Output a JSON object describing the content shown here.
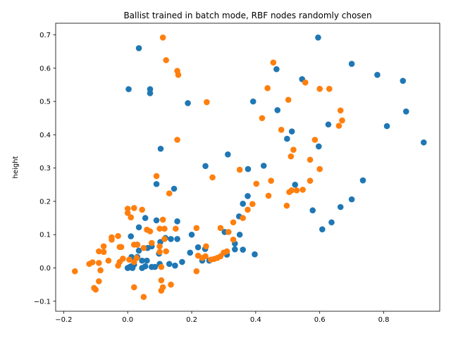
{
  "chart_data": {
    "type": "scatter",
    "title": "Ballist trained in batch mode, RBF nodes randomly chosen",
    "xlabel": "",
    "ylabel": "height",
    "xlim": [
      -0.225,
      0.975
    ],
    "ylim": [
      -0.13,
      0.735
    ],
    "xticks": [
      -0.2,
      0.0,
      0.2,
      0.4,
      0.6,
      0.8
    ],
    "xtick_labels": [
      "−0.2",
      "0.0",
      "0.2",
      "0.4",
      "0.6",
      "0.8"
    ],
    "yticks": [
      -0.1,
      0.0,
      0.1,
      0.2,
      0.3,
      0.4,
      0.5,
      0.6,
      0.7
    ],
    "ytick_labels": [
      "−0.1",
      "0.0",
      "0.1",
      "0.2",
      "0.3",
      "0.4",
      "0.5",
      "0.6",
      "0.7"
    ],
    "grid": false,
    "legend": false,
    "series": [
      {
        "color": "#1f77b4",
        "points": [
          [
            0.035,
            0.66
          ],
          [
            0.003,
            0.537
          ],
          [
            0.07,
            0.537
          ],
          [
            0.07,
            0.525
          ],
          [
            0.188,
            0.495
          ],
          [
            0.103,
            0.358
          ],
          [
            0.09,
            0.252
          ],
          [
            0.145,
            0.238
          ],
          [
            0.243,
            0.306
          ],
          [
            0.313,
            0.341
          ],
          [
            0.376,
            0.297
          ],
          [
            0.392,
            0.5
          ],
          [
            0.425,
            0.307
          ],
          [
            0.465,
            0.597
          ],
          [
            0.468,
            0.474
          ],
          [
            0.545,
            0.567
          ],
          [
            0.498,
            0.388
          ],
          [
            0.513,
            0.41
          ],
          [
            0.595,
            0.692
          ],
          [
            0.597,
            0.365
          ],
          [
            0.627,
            0.431
          ],
          [
            0.7,
            0.613
          ],
          [
            0.78,
            0.58
          ],
          [
            0.86,
            0.562
          ],
          [
            0.87,
            0.47
          ],
          [
            0.81,
            0.426
          ],
          [
            0.925,
            0.377
          ],
          [
            0.735,
            0.263
          ],
          [
            0.7,
            0.206
          ],
          [
            0.665,
            0.183
          ],
          [
            0.637,
            0.137
          ],
          [
            0.608,
            0.116
          ],
          [
            0.578,
            0.173
          ],
          [
            0.523,
            0.25
          ],
          [
            0.375,
            0.216
          ],
          [
            0.36,
            0.193
          ],
          [
            0.348,
            0.155
          ],
          [
            0.35,
            0.1
          ],
          [
            0.36,
            0.055
          ],
          [
            0.397,
            0.041
          ],
          [
            0.335,
            0.073
          ],
          [
            0.335,
            0.056
          ],
          [
            0.31,
            0.04
          ],
          [
            0.303,
            0.108
          ],
          [
            0.242,
            0.057
          ],
          [
            0.22,
            0.062
          ],
          [
            0.2,
            0.1
          ],
          [
            0.195,
            0.046
          ],
          [
            0.233,
            0.022
          ],
          [
            0.255,
            0.022
          ],
          [
            0.17,
            0.018
          ],
          [
            0.155,
            0.14
          ],
          [
            0.155,
            0.087
          ],
          [
            0.135,
            0.087
          ],
          [
            0.13,
            0.012
          ],
          [
            0.148,
            0.007
          ],
          [
            0.118,
            0.09
          ],
          [
            0.102,
            0.078
          ],
          [
            0.09,
            0.143
          ],
          [
            0.098,
            0.043
          ],
          [
            0.1,
            0.012
          ],
          [
            0.075,
            0.065
          ],
          [
            0.062,
            0.06
          ],
          [
            0.055,
            0.15
          ],
          [
            0.035,
            0.122
          ],
          [
            0.03,
            0.07
          ],
          [
            0.01,
            0.095
          ],
          [
            0.035,
            0.052
          ],
          [
            0.03,
            0.033
          ],
          [
            0.012,
            0.033
          ],
          [
            0.045,
            0.022
          ],
          [
            0.06,
            0.022
          ],
          [
            0.02,
            0.01
          ],
          [
            0.01,
            0.005
          ],
          [
            0.0,
            0.0
          ],
          [
            0.005,
            0.002
          ],
          [
            0.015,
            0.0
          ],
          [
            0.045,
            0.0
          ],
          [
            0.055,
            0.005
          ],
          [
            0.075,
            0.003
          ],
          [
            0.085,
            0.003
          ]
        ]
      },
      {
        "color": "#ff7f0e",
        "points": [
          [
            0.11,
            0.692
          ],
          [
            0.12,
            0.624
          ],
          [
            0.155,
            0.592
          ],
          [
            0.158,
            0.58
          ],
          [
            0.247,
            0.498
          ],
          [
            0.155,
            0.385
          ],
          [
            0.09,
            0.276
          ],
          [
            0.13,
            0.224
          ],
          [
            0.265,
            0.272
          ],
          [
            0.35,
            0.295
          ],
          [
            0.402,
            0.253
          ],
          [
            0.42,
            0.45
          ],
          [
            0.437,
            0.54
          ],
          [
            0.455,
            0.617
          ],
          [
            0.48,
            0.415
          ],
          [
            0.502,
            0.505
          ],
          [
            0.51,
            0.335
          ],
          [
            0.518,
            0.355
          ],
          [
            0.555,
            0.557
          ],
          [
            0.6,
            0.538
          ],
          [
            0.63,
            0.538
          ],
          [
            0.665,
            0.473
          ],
          [
            0.67,
            0.443
          ],
          [
            0.66,
            0.427
          ],
          [
            0.585,
            0.385
          ],
          [
            0.6,
            0.297
          ],
          [
            0.57,
            0.325
          ],
          [
            0.57,
            0.262
          ],
          [
            0.547,
            0.235
          ],
          [
            0.528,
            0.233
          ],
          [
            0.512,
            0.233
          ],
          [
            0.505,
            0.228
          ],
          [
            0.497,
            0.187
          ],
          [
            0.448,
            0.262
          ],
          [
            0.44,
            0.217
          ],
          [
            0.39,
            0.192
          ],
          [
            0.375,
            0.175
          ],
          [
            0.36,
            0.15
          ],
          [
            0.33,
            0.137
          ],
          [
            0.315,
            0.108
          ],
          [
            0.29,
            0.12
          ],
          [
            0.33,
            0.085
          ],
          [
            0.31,
            0.05
          ],
          [
            0.3,
            0.046
          ],
          [
            0.29,
            0.035
          ],
          [
            0.28,
            0.03
          ],
          [
            0.27,
            0.027
          ],
          [
            0.26,
            0.025
          ],
          [
            0.245,
            0.065
          ],
          [
            0.243,
            0.035
          ],
          [
            0.233,
            0.03
          ],
          [
            0.215,
            0.12
          ],
          [
            0.22,
            0.037
          ],
          [
            0.215,
            -0.01
          ],
          [
            0.15,
            0.118
          ],
          [
            0.135,
            -0.05
          ],
          [
            0.11,
            0.145
          ],
          [
            0.115,
            0.118
          ],
          [
            0.115,
            0.087
          ],
          [
            0.12,
            0.05
          ],
          [
            0.1,
            0.118
          ],
          [
            0.1,
            0.065
          ],
          [
            0.1,
            0.048
          ],
          [
            0.075,
            0.075
          ],
          [
            0.07,
            0.11
          ],
          [
            0.06,
            0.115
          ],
          [
            0.045,
            0.175
          ],
          [
            0.05,
            0.06
          ],
          [
            0.02,
            0.07
          ],
          [
            0.02,
            0.18
          ],
          [
            0.0,
            0.178
          ],
          [
            0.0,
            0.165
          ],
          [
            0.01,
            0.152
          ],
          [
            -0.03,
            0.096
          ],
          [
            -0.05,
            0.092
          ],
          [
            -0.05,
            0.085
          ],
          [
            -0.075,
            0.065
          ],
          [
            -0.075,
            0.048
          ],
          [
            -0.09,
            0.05
          ],
          [
            -0.025,
            0.063
          ],
          [
            -0.02,
            0.063
          ],
          [
            -0.06,
            0.022
          ],
          [
            -0.025,
            0.018
          ],
          [
            -0.015,
            0.028
          ],
          [
            0.005,
            0.025
          ],
          [
            0.02,
            0.018
          ],
          [
            0.028,
            0.03
          ],
          [
            -0.03,
            0.007
          ],
          [
            -0.09,
            0.015
          ],
          [
            -0.11,
            0.017
          ],
          [
            -0.12,
            0.012
          ],
          [
            -0.165,
            -0.01
          ],
          [
            -0.085,
            -0.007
          ],
          [
            -0.09,
            -0.04
          ],
          [
            -0.105,
            -0.06
          ],
          [
            -0.1,
            -0.065
          ],
          [
            0.02,
            -0.058
          ],
          [
            0.05,
            -0.087
          ],
          [
            0.105,
            -0.037
          ],
          [
            0.105,
            -0.068
          ],
          [
            0.11,
            -0.058
          ],
          [
            0.105,
            0.003
          ],
          [
            0.03,
            0.07
          ]
        ]
      }
    ]
  }
}
